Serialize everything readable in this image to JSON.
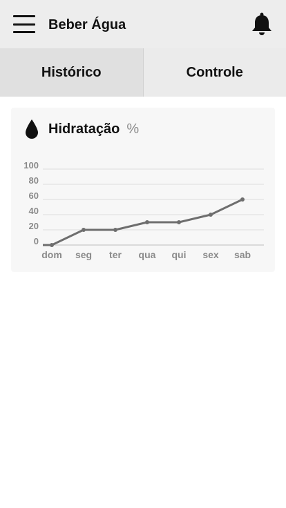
{
  "appbar": {
    "title": "Beber Água",
    "menu_icon": "hamburger-menu-icon",
    "notification_icon": "bell-icon"
  },
  "tabs": [
    {
      "label": "Histórico",
      "active": true
    },
    {
      "label": "Controle",
      "active": false
    }
  ],
  "card": {
    "icon": "water-drop-icon",
    "title": "Hidratação",
    "unit": "%"
  },
  "chart_data": {
    "type": "line",
    "categories": [
      "dom",
      "seg",
      "ter",
      "qua",
      "qui",
      "sex",
      "sab"
    ],
    "values": [
      0,
      20,
      20,
      30,
      30,
      40,
      60
    ],
    "y_ticks": [
      100,
      80,
      60,
      40,
      20,
      0
    ],
    "ylim": [
      0,
      100
    ],
    "grid": true,
    "line_color": "#6e6e6e"
  }
}
